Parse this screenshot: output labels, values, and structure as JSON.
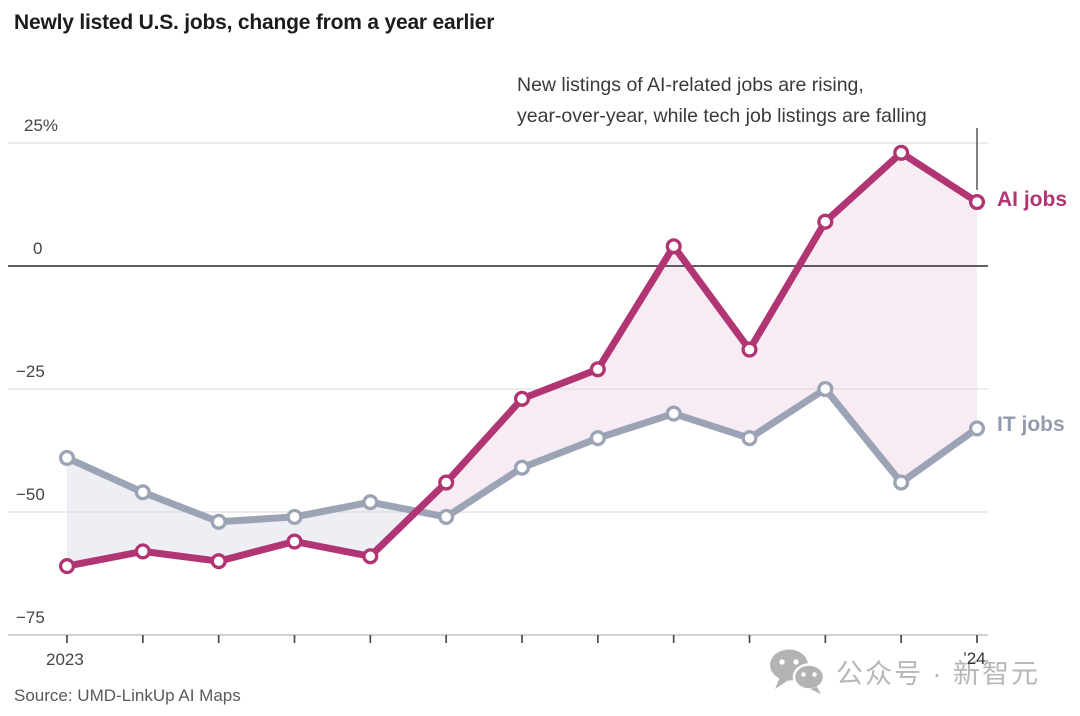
{
  "header": {
    "title": "Newly listed U.S. jobs, change from a year earlier"
  },
  "annotation": {
    "lines": [
      "New listings of AI-related jobs are rising,",
      "year-over-year, while tech job listings are falling"
    ]
  },
  "chart_data": {
    "type": "line",
    "title": "Newly listed U.S. jobs, change from a year earlier",
    "unit": "percent change year-over-year",
    "x_count": 13,
    "x_axis": {
      "labels": [
        {
          "at": 0,
          "text": "2023"
        },
        {
          "at": 12,
          "text": "’24"
        }
      ]
    },
    "y_axis": {
      "range": [
        -75,
        25
      ],
      "ticks": [
        {
          "value": 25,
          "label": "25%"
        },
        {
          "value": 0,
          "label": "0"
        },
        {
          "value": -25,
          "label": "−25"
        },
        {
          "value": -50,
          "label": "−50"
        },
        {
          "value": -75,
          "label": "−75"
        }
      ],
      "zero_line": true
    },
    "grid": "horizontal",
    "legend_position": "end-of-line-labels",
    "series": [
      {
        "name": "AI jobs",
        "color": "#b03572",
        "fill_when_on_top": "#f7ecf3",
        "values": [
          -61,
          -58,
          -60,
          -56,
          -59,
          -44,
          -27,
          -21,
          4,
          -17,
          9,
          23,
          13
        ]
      },
      {
        "name": "IT jobs",
        "color": "#9ca3b4",
        "fill_when_on_top": "#edeff4",
        "values": [
          -39,
          -46,
          -52,
          -51,
          -48,
          -51,
          -41,
          -35,
          -30,
          -35,
          -25,
          -44,
          -33
        ]
      }
    ]
  },
  "footer": {
    "source": "Source: UMD-LinkUp AI Maps"
  },
  "watermark": {
    "icon": "wechat-icon",
    "text": "公众号 · 新智元"
  }
}
